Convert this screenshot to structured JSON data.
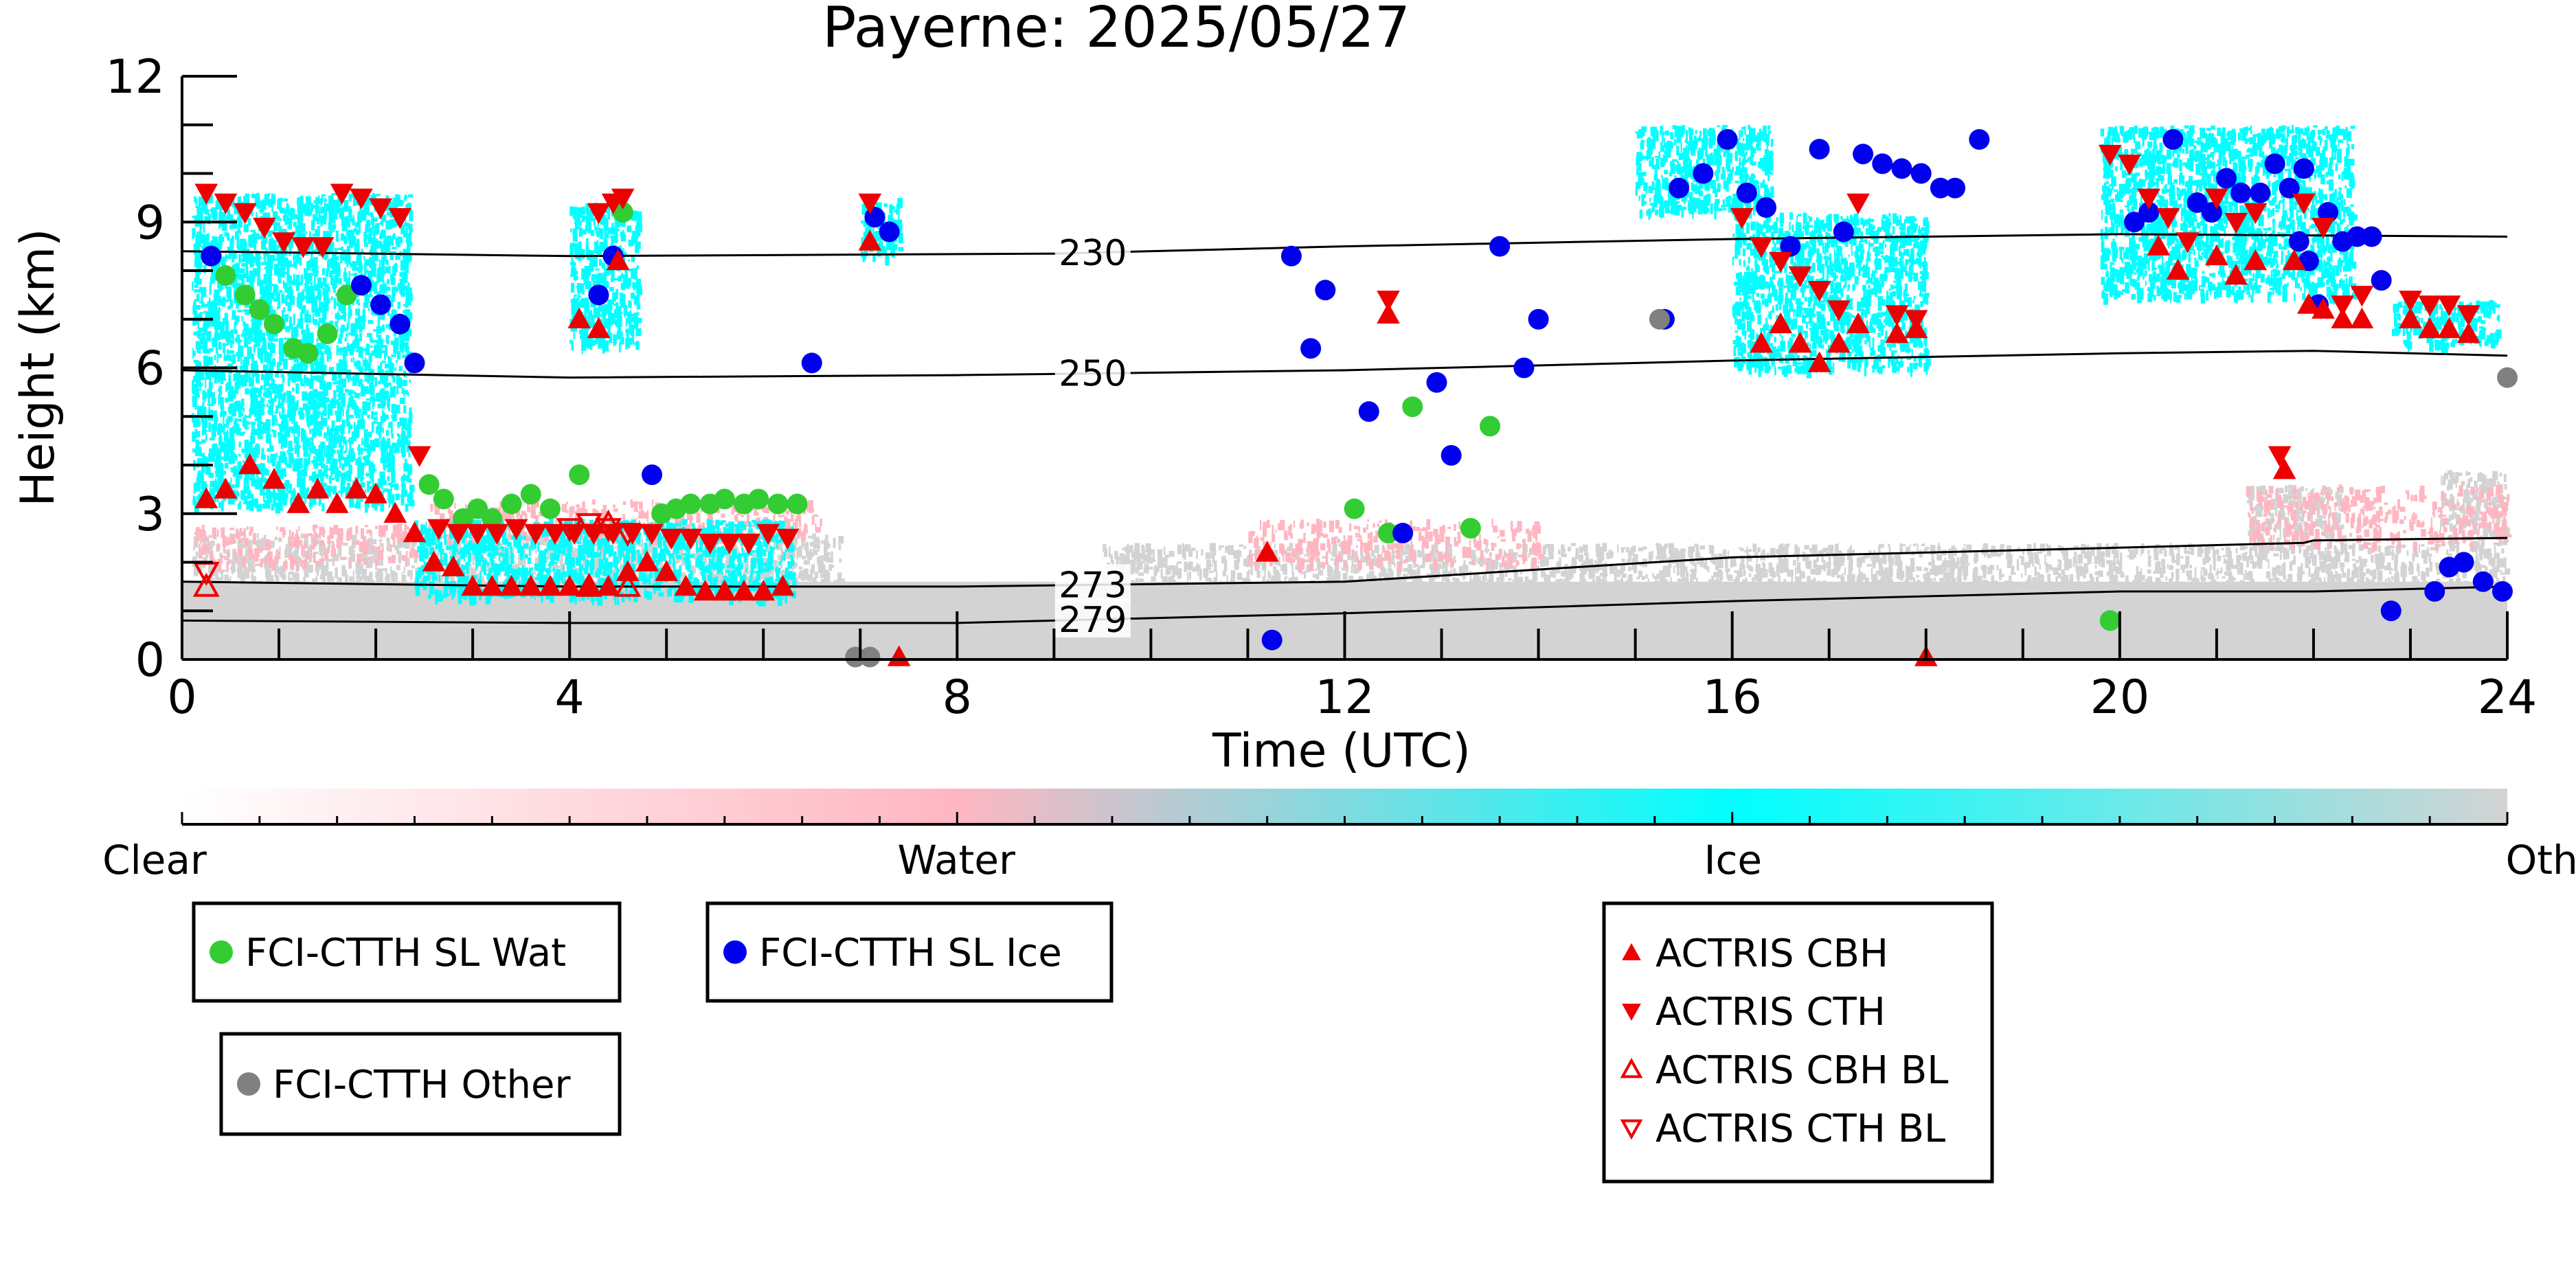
{
  "chart_data": {
    "type": "scatter",
    "title": "Payerne: 2025/05/27",
    "xlabel": "Time (UTC)",
    "ylabel": "Height (km)",
    "xlim": [
      0,
      24
    ],
    "ylim": [
      0,
      12
    ],
    "xticks": [
      0,
      4,
      8,
      12,
      16,
      20,
      24
    ],
    "yticks": [
      0,
      3,
      6,
      9,
      12
    ],
    "xtick_labels": [
      "0",
      "4",
      "8",
      "12",
      "16",
      "20",
      "24"
    ],
    "ytick_labels": [
      "0",
      "3",
      "6",
      "9",
      "12"
    ],
    "grid": false,
    "colorbar": {
      "labels": [
        "Clear",
        "Water",
        "Ice",
        "Other"
      ],
      "colors": [
        "#ffffff",
        "#ffb6c1",
        "#00ffff",
        "#d3d3d3"
      ]
    },
    "contours": [
      {
        "label": "230",
        "points": [
          [
            0,
            8.4
          ],
          [
            4,
            8.3
          ],
          [
            9,
            8.35
          ],
          [
            12,
            8.5
          ],
          [
            16,
            8.65
          ],
          [
            20,
            8.75
          ],
          [
            24,
            8.7
          ]
        ]
      },
      {
        "label": "250",
        "points": [
          [
            0,
            5.95
          ],
          [
            4,
            5.8
          ],
          [
            8,
            5.85
          ],
          [
            12,
            5.95
          ],
          [
            16,
            6.15
          ],
          [
            20,
            6.3
          ],
          [
            22,
            6.35
          ],
          [
            24,
            6.25
          ]
        ]
      },
      {
        "label": "273",
        "points": [
          [
            0,
            1.6
          ],
          [
            4,
            1.5
          ],
          [
            8,
            1.5
          ],
          [
            12,
            1.6
          ],
          [
            16,
            2.1
          ],
          [
            20,
            2.3
          ],
          [
            21.9,
            2.4
          ],
          [
            22,
            2.45
          ],
          [
            24,
            2.5
          ]
        ]
      },
      {
        "label": "279",
        "points": [
          [
            0,
            0.8
          ],
          [
            4,
            0.75
          ],
          [
            8,
            0.75
          ],
          [
            12,
            0.95
          ],
          [
            16,
            1.2
          ],
          [
            20,
            1.4
          ],
          [
            22,
            1.4
          ],
          [
            24,
            1.5
          ]
        ]
      }
    ],
    "series": [
      {
        "name": "FCI-CTTH SL Wat",
        "marker": "circle",
        "color": "#33cc33",
        "x": [
          0.45,
          0.65,
          0.8,
          0.95,
          1.15,
          1.3,
          1.5,
          1.7,
          2.55,
          2.7,
          2.9,
          3.05,
          3.2,
          3.4,
          3.6,
          3.8,
          4.1,
          4.55,
          4.95,
          5.1,
          5.25,
          5.45,
          5.6,
          5.8,
          5.95,
          6.15,
          6.35,
          12.1,
          12.45,
          12.7,
          13.3,
          13.5,
          19.9
        ],
        "y": [
          7.9,
          7.5,
          7.2,
          6.9,
          6.4,
          6.3,
          6.7,
          7.5,
          3.6,
          3.3,
          2.9,
          3.1,
          2.9,
          3.2,
          3.4,
          3.1,
          3.8,
          9.2,
          3.0,
          3.1,
          3.2,
          3.2,
          3.3,
          3.2,
          3.3,
          3.2,
          3.2,
          3.1,
          2.6,
          5.2,
          2.7,
          4.8,
          0.8
        ]
      },
      {
        "name": "FCI-CTTH SL Ice",
        "marker": "circle",
        "color": "#0000ee",
        "x": [
          0.3,
          1.85,
          2.05,
          2.25,
          2.4,
          4.3,
          4.45,
          4.85,
          6.5,
          7.15,
          7.3,
          11.25,
          11.45,
          11.65,
          11.8,
          12.25,
          12.6,
          12.95,
          13.1,
          13.6,
          13.85,
          14.0,
          15.3,
          15.45,
          15.7,
          15.95,
          16.15,
          16.35,
          16.6,
          16.9,
          17.15,
          17.35,
          17.55,
          17.75,
          17.95,
          18.15,
          18.3,
          18.55,
          20.15,
          20.3,
          20.55,
          20.8,
          20.95,
          21.1,
          21.25,
          21.45,
          21.6,
          21.75,
          21.85,
          21.9,
          21.95,
          22.05,
          22.15,
          22.3,
          22.45,
          22.6,
          22.7,
          22.8,
          23.25,
          23.4,
          23.55,
          23.75,
          23.95
        ],
        "y": [
          8.3,
          7.7,
          7.3,
          6.9,
          6.1,
          7.5,
          8.3,
          3.8,
          6.1,
          9.1,
          8.8,
          0.4,
          8.3,
          6.4,
          7.6,
          5.1,
          2.6,
          5.7,
          4.2,
          8.5,
          6.0,
          7.0,
          7.0,
          9.7,
          10.0,
          10.7,
          9.6,
          9.3,
          8.5,
          10.5,
          8.8,
          10.4,
          10.2,
          10.1,
          10.0,
          9.7,
          9.7,
          10.7,
          9.0,
          9.2,
          10.7,
          9.4,
          9.2,
          9.9,
          9.6,
          9.6,
          10.2,
          9.7,
          8.6,
          10.1,
          8.2,
          7.3,
          9.2,
          8.6,
          8.7,
          8.7,
          7.8,
          1.0,
          1.4,
          1.9,
          2.0,
          1.6,
          1.4
        ]
      },
      {
        "name": "FCI-CTTH Other",
        "marker": "circle",
        "color": "#808080",
        "x": [
          6.95,
          7.1,
          15.25,
          24.0
        ],
        "y": [
          0.05,
          0.05,
          7.0,
          5.8
        ]
      },
      {
        "name": "ACTRIS CBH",
        "marker": "triangle-up",
        "color": "#ee0000",
        "x": [
          0.25,
          0.45,
          0.7,
          0.95,
          1.2,
          1.4,
          1.6,
          1.8,
          2.0,
          2.2,
          2.4,
          2.6,
          2.8,
          3.0,
          3.2,
          3.4,
          3.6,
          3.8,
          4.0,
          4.2,
          4.4,
          4.6,
          4.8,
          5.0,
          5.2,
          5.4,
          5.6,
          5.8,
          6.0,
          6.2,
          4.1,
          4.3,
          4.5,
          7.4,
          7.1,
          11.2,
          12.45,
          16.3,
          16.5,
          16.7,
          16.9,
          17.1,
          17.3,
          17.7,
          17.9,
          18.0,
          20.4,
          20.6,
          21.0,
          21.2,
          21.4,
          21.7,
          21.8,
          21.95,
          22.1,
          22.3,
          22.5,
          23.0,
          23.2,
          23.4,
          23.6
        ],
        "y": [
          3.3,
          3.5,
          4.0,
          3.7,
          3.2,
          3.5,
          3.2,
          3.5,
          3.4,
          3.0,
          2.6,
          2.0,
          1.9,
          1.5,
          1.5,
          1.5,
          1.5,
          1.5,
          1.5,
          1.5,
          1.5,
          1.8,
          2.0,
          1.8,
          1.5,
          1.4,
          1.4,
          1.4,
          1.4,
          1.5,
          7.0,
          6.8,
          8.2,
          0.05,
          8.6,
          2.2,
          7.1,
          6.5,
          6.9,
          6.5,
          6.1,
          6.5,
          6.9,
          6.7,
          6.8,
          0.05,
          8.5,
          8.0,
          8.3,
          7.9,
          8.2,
          3.9,
          8.2,
          7.3,
          7.2,
          7.0,
          7.0,
          7.0,
          6.8,
          6.8,
          6.7
        ],
        "notes": []
      },
      {
        "name": "ACTRIS CTH",
        "marker": "triangle-down",
        "color": "#ee0000",
        "x": [
          0.25,
          0.45,
          0.65,
          0.85,
          1.05,
          1.25,
          1.45,
          1.65,
          1.85,
          2.05,
          2.25,
          2.45,
          2.65,
          2.85,
          3.05,
          3.25,
          3.45,
          3.65,
          3.85,
          4.05,
          4.25,
          4.45,
          4.65,
          4.85,
          5.05,
          5.25,
          5.45,
          5.65,
          5.85,
          6.05,
          6.25,
          4.3,
          4.45,
          4.55,
          7.1,
          12.45,
          16.1,
          16.3,
          16.5,
          16.7,
          16.9,
          17.1,
          17.3,
          17.7,
          17.9,
          19.9,
          20.1,
          20.3,
          20.5,
          20.7,
          21.0,
          21.2,
          21.4,
          21.65,
          21.9,
          22.1,
          22.3,
          22.5,
          23.0,
          23.2,
          23.4,
          23.6
        ],
        "y": [
          9.6,
          9.4,
          9.2,
          8.9,
          8.6,
          8.5,
          8.5,
          9.6,
          9.5,
          9.3,
          9.1,
          4.2,
          2.7,
          2.6,
          2.6,
          2.6,
          2.7,
          2.6,
          2.6,
          2.6,
          2.6,
          2.6,
          2.6,
          2.6,
          2.5,
          2.5,
          2.4,
          2.4,
          2.4,
          2.6,
          2.5,
          9.2,
          9.4,
          9.5,
          9.4,
          7.4,
          9.1,
          8.5,
          8.2,
          7.9,
          7.6,
          7.2,
          9.4,
          7.1,
          7.0,
          10.4,
          10.2,
          9.5,
          9.1,
          8.6,
          9.5,
          9.0,
          9.2,
          4.2,
          9.4,
          8.9,
          7.3,
          7.5,
          7.4,
          7.3,
          7.3,
          7.1
        ],
        "notes": []
      },
      {
        "name": "ACTRIS CBH BL",
        "marker": "triangle-up-open",
        "color": "#ee0000",
        "x": [
          0.25,
          4.2,
          4.4,
          4.6
        ],
        "y": [
          1.5,
          1.5,
          2.8,
          1.5
        ]
      },
      {
        "name": "ACTRIS CTH BL",
        "marker": "triangle-down-open",
        "color": "#ee0000",
        "x": [
          0.25,
          4.0,
          4.2,
          4.4,
          4.6
        ],
        "y": [
          1.8,
          2.7,
          2.8,
          2.7,
          2.6
        ]
      }
    ],
    "legend": {
      "groups": [
        [
          "FCI-CTTH SL Wat"
        ],
        [
          "FCI-CTTH SL Ice"
        ],
        [
          "FCI-CTTH Other"
        ],
        [
          "ACTRIS CBH",
          "ACTRIS CTH",
          "ACTRIS CBH BL",
          "ACTRIS CTH BL"
        ]
      ]
    },
    "background_classes": {
      "ice_regions": [
        {
          "x0": 0.1,
          "x1": 2.35,
          "y0": 3.2,
          "y1": 9.6
        },
        {
          "x0": 2.4,
          "x1": 6.3,
          "y0": 1.3,
          "y1": 2.9
        },
        {
          "x0": 4.0,
          "x1": 4.7,
          "y0": 6.5,
          "y1": 9.4
        },
        {
          "x0": 7.0,
          "x1": 7.4,
          "y0": 8.3,
          "y1": 9.5
        },
        {
          "x0": 15.0,
          "x1": 16.4,
          "y0": 9.2,
          "y1": 11.0
        },
        {
          "x0": 16.0,
          "x1": 18.0,
          "y0": 6.0,
          "y1": 9.2
        },
        {
          "x0": 19.8,
          "x1": 22.4,
          "y0": 7.5,
          "y1": 11.0
        },
        {
          "x0": 22.8,
          "x1": 23.9,
          "y0": 6.5,
          "y1": 7.4
        }
      ],
      "water_regions": [
        {
          "x0": 0.1,
          "x1": 2.4,
          "y0": 2.0,
          "y1": 2.8
        },
        {
          "x0": 2.5,
          "x1": 6.6,
          "y0": 2.5,
          "y1": 3.3
        },
        {
          "x0": 11.0,
          "x1": 14.0,
          "y0": 2.0,
          "y1": 2.9
        },
        {
          "x0": 21.3,
          "x1": 24.0,
          "y0": 2.4,
          "y1": 3.6
        }
      ],
      "other_regions": [
        {
          "x0": 0.0,
          "x1": 24.0,
          "y0": 0.0,
          "y1": 1.6
        },
        {
          "x0": 0.1,
          "x1": 6.8,
          "y0": 1.6,
          "y1": 2.6
        },
        {
          "x0": 9.5,
          "x1": 24.0,
          "y0": 1.4,
          "y1": 2.4
        },
        {
          "x0": 21.3,
          "x1": 22.3,
          "y0": 2.3,
          "y1": 3.6
        },
        {
          "x0": 23.3,
          "x1": 24.0,
          "y0": 2.4,
          "y1": 3.9
        }
      ]
    }
  }
}
